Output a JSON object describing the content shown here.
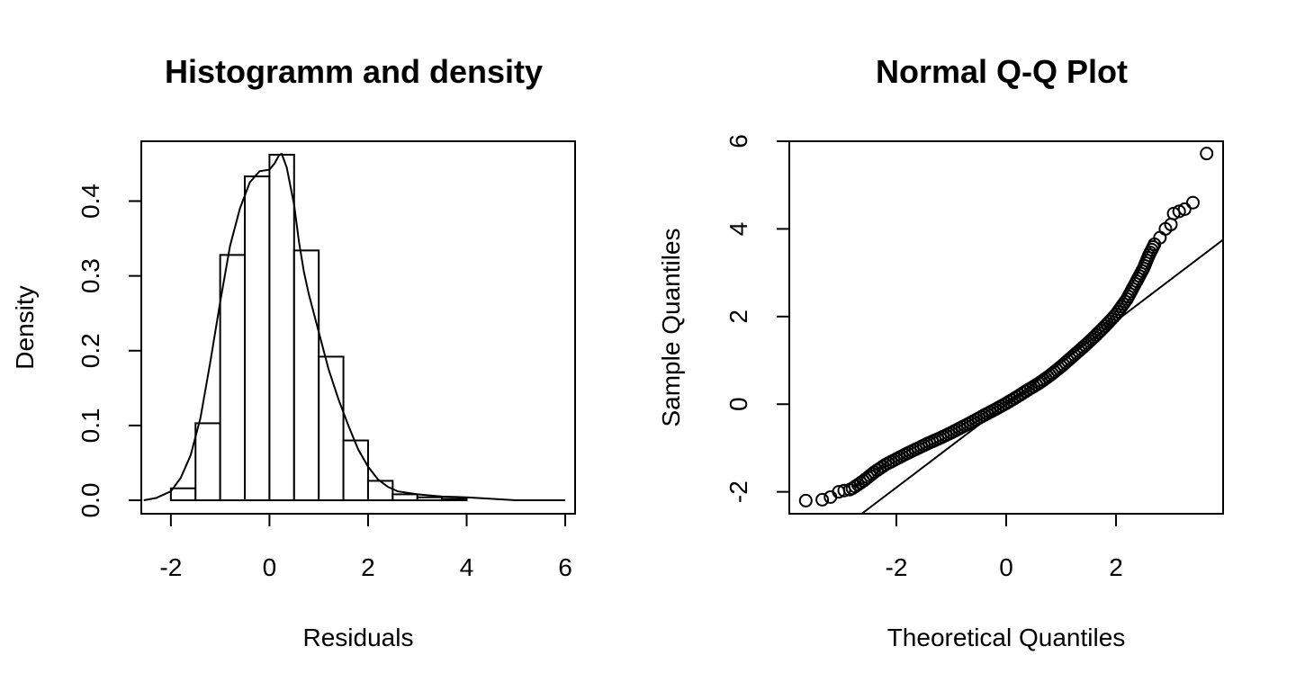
{
  "chart_data": [
    {
      "type": "bar",
      "title": "Histogramm and density",
      "xlabel": "Residuals",
      "ylabel": "Density",
      "xlim": [
        -2.6,
        6.2
      ],
      "ylim": [
        -0.018,
        0.48
      ],
      "xticks": [
        -2,
        0,
        2,
        4,
        6
      ],
      "yticks": [
        0.0,
        0.1,
        0.2,
        0.3,
        0.4
      ],
      "xtick_labels": [
        "-2",
        "0",
        "2",
        "4",
        "6"
      ],
      "ytick_labels": [
        "0.0",
        "0.1",
        "0.2",
        "0.3",
        "0.4"
      ],
      "bins": [
        {
          "x0": -2.0,
          "x1": -1.5,
          "density": 0.016
        },
        {
          "x0": -1.5,
          "x1": -1.0,
          "density": 0.103
        },
        {
          "x0": -1.0,
          "x1": -0.5,
          "density": 0.328
        },
        {
          "x0": -0.5,
          "x1": 0.0,
          "density": 0.433
        },
        {
          "x0": 0.0,
          "x1": 0.5,
          "density": 0.462
        },
        {
          "x0": 0.5,
          "x1": 1.0,
          "density": 0.334
        },
        {
          "x0": 1.0,
          "x1": 1.5,
          "density": 0.192
        },
        {
          "x0": 1.5,
          "x1": 2.0,
          "density": 0.08
        },
        {
          "x0": 2.0,
          "x1": 2.5,
          "density": 0.026
        },
        {
          "x0": 2.5,
          "x1": 3.0,
          "density": 0.008
        },
        {
          "x0": 3.0,
          "x1": 3.5,
          "density": 0.004
        },
        {
          "x0": 3.5,
          "x1": 4.0,
          "density": 0.002
        }
      ],
      "density_curve": {
        "x": [
          -2.55,
          -2.3,
          -2.0,
          -1.8,
          -1.6,
          -1.4,
          -1.2,
          -1.0,
          -0.8,
          -0.6,
          -0.4,
          -0.2,
          0.0,
          0.1,
          0.2,
          0.25,
          0.35,
          0.5,
          0.6,
          0.7,
          0.8,
          1.0,
          1.2,
          1.4,
          1.6,
          1.8,
          2.0,
          2.2,
          2.4,
          2.6,
          3.0,
          3.5,
          4.0,
          4.5,
          5.0,
          5.5,
          6.0
        ],
        "y": [
          0.0,
          0.003,
          0.012,
          0.03,
          0.06,
          0.11,
          0.185,
          0.265,
          0.34,
          0.39,
          0.425,
          0.44,
          0.442,
          0.45,
          0.462,
          0.463,
          0.445,
          0.395,
          0.345,
          0.305,
          0.275,
          0.225,
          0.175,
          0.135,
          0.1,
          0.068,
          0.045,
          0.028,
          0.018,
          0.012,
          0.008,
          0.005,
          0.004,
          0.002,
          0.0,
          0.0,
          0.0
        ]
      }
    },
    {
      "type": "scatter",
      "title": "Normal Q-Q Plot",
      "xlabel": "Theoretical Quantiles",
      "ylabel": "Sample Quantiles",
      "xlim": [
        -3.95,
        3.95
      ],
      "ylim": [
        -2.5,
        6.0
      ],
      "xticks": [
        -2,
        0,
        2
      ],
      "yticks": [
        -2,
        0,
        2,
        4,
        6
      ],
      "xtick_labels": [
        "-2",
        "0",
        "2"
      ],
      "ytick_labels": [
        "-2",
        "0",
        "2",
        "4",
        "6"
      ],
      "reference_line": {
        "intercept": 0.0,
        "slope": 0.95
      },
      "points": {
        "x": [
          -3.65,
          -3.35,
          -3.2,
          -3.05,
          -2.95,
          -2.85,
          -2.8,
          -2.6,
          -2.4,
          -2.2,
          -2.0,
          -1.8,
          -1.6,
          -1.4,
          -1.2,
          -1.0,
          -0.8,
          -0.6,
          -0.4,
          -0.2,
          0.0,
          0.2,
          0.4,
          0.6,
          0.8,
          1.0,
          1.2,
          1.4,
          1.6,
          1.8,
          2.0,
          2.2,
          2.35,
          2.5,
          2.6,
          2.7,
          2.8,
          2.9,
          3.0,
          3.05,
          3.15,
          3.25,
          3.4,
          3.65
        ],
        "y": [
          -2.2,
          -2.18,
          -2.12,
          -2.0,
          -1.97,
          -1.95,
          -1.92,
          -1.75,
          -1.55,
          -1.38,
          -1.25,
          -1.12,
          -1.0,
          -0.88,
          -0.77,
          -0.65,
          -0.52,
          -0.39,
          -0.25,
          -0.12,
          0.02,
          0.17,
          0.33,
          0.48,
          0.66,
          0.86,
          1.08,
          1.3,
          1.53,
          1.78,
          2.05,
          2.4,
          2.75,
          3.1,
          3.4,
          3.65,
          3.8,
          4.0,
          4.1,
          4.35,
          4.4,
          4.45,
          4.6,
          5.72
        ]
      }
    }
  ]
}
